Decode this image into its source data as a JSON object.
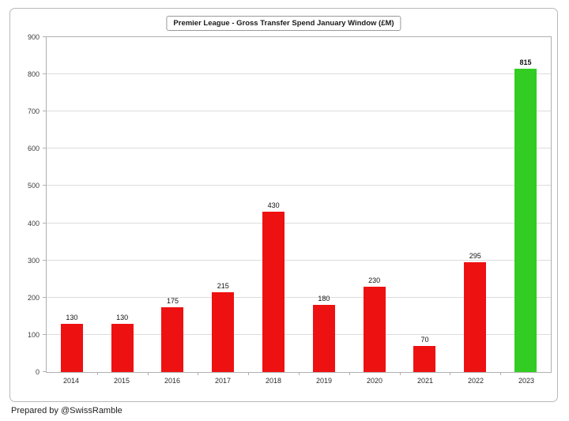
{
  "footer": {
    "credit": "Prepared by @SwissRamble"
  },
  "chart_data": {
    "type": "bar",
    "title": "Premier League - Gross Transfer Spend January Window (£M)",
    "categories": [
      "2014",
      "2015",
      "2016",
      "2017",
      "2018",
      "2019",
      "2020",
      "2021",
      "2022",
      "2023"
    ],
    "values": [
      130,
      130,
      175,
      215,
      430,
      180,
      230,
      70,
      295,
      815
    ],
    "bar_colors": [
      "#ee1111",
      "#ee1111",
      "#ee1111",
      "#ee1111",
      "#ee1111",
      "#ee1111",
      "#ee1111",
      "#ee1111",
      "#ee1111",
      "#33cc22"
    ],
    "bold_value_labels": [
      false,
      false,
      false,
      false,
      false,
      false,
      false,
      false,
      false,
      true
    ],
    "highlight_category": "2023",
    "xlabel": "",
    "ylabel": "",
    "ylim": [
      0,
      900
    ],
    "ytick_step": 100,
    "grid": true,
    "legend_position": "none",
    "colors": {
      "bar_default": "#ee1111",
      "bar_highlight": "#33cc22",
      "grid": "#dcdcdc",
      "axis_border": "#b0b0b0"
    }
  }
}
